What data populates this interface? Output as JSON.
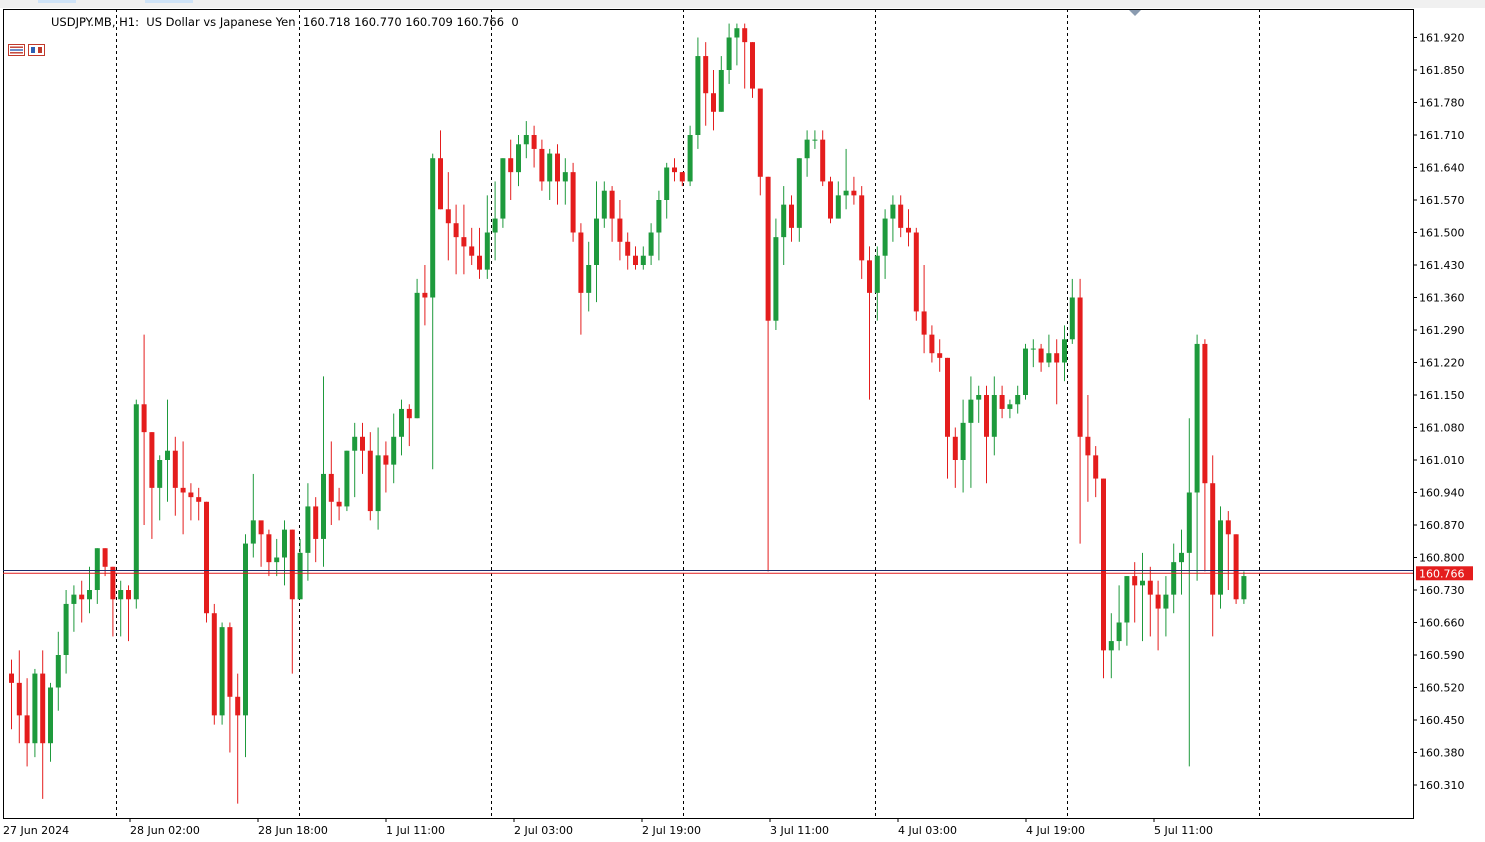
{
  "header": {
    "symbol": "USDJPY.MB",
    "timeframe": "H1:",
    "description": "US Dollar vs Japanese Yen",
    "ohlc": "160.718 160.770 160.709 160.766",
    "volume": "0"
  },
  "colors": {
    "bull": "#1e9a3c",
    "bear": "#e41d1d",
    "grid": "#000000",
    "bid_line": "#e41d1d",
    "ask_line": "#1c2b6b",
    "price_tag_bg": "#e41d1d"
  },
  "chart_data": {
    "type": "candlestick",
    "ylim": [
      160.25,
      161.98
    ],
    "y_ticks": [
      "161.920",
      "161.850",
      "161.780",
      "161.710",
      "161.640",
      "161.570",
      "161.500",
      "161.430",
      "161.360",
      "161.290",
      "161.220",
      "161.150",
      "161.080",
      "161.010",
      "160.940",
      "160.870",
      "160.800",
      "160.730",
      "160.660",
      "160.590",
      "160.520",
      "160.450",
      "160.380",
      "160.310"
    ],
    "x_labels": [
      "27 Jun 2024",
      "28 Jun 02:00",
      "28 Jun 18:00",
      "1 Jul 11:00",
      "2 Jul 03:00",
      "2 Jul 19:00",
      "3 Jul 11:00",
      "4 Jul 03:00",
      "4 Jul 19:00",
      "5 Jul 11:00"
    ],
    "current_price": "160.766",
    "ask_price": 160.772,
    "candles": [
      [
        160.55,
        160.53,
        160.58,
        160.43
      ],
      [
        160.53,
        160.46,
        160.6,
        160.4
      ],
      [
        160.46,
        160.4,
        160.54,
        160.35
      ],
      [
        160.4,
        160.55,
        160.56,
        160.37
      ],
      [
        160.55,
        160.4,
        160.6,
        160.28
      ],
      [
        160.4,
        160.52,
        160.53,
        160.36
      ],
      [
        160.52,
        160.59,
        160.64,
        160.47
      ],
      [
        160.59,
        160.7,
        160.73,
        160.55
      ],
      [
        160.7,
        160.72,
        160.74,
        160.64
      ],
      [
        160.72,
        160.71,
        160.75,
        160.66
      ],
      [
        160.71,
        160.73,
        160.78,
        160.68
      ],
      [
        160.73,
        160.82,
        160.82,
        160.7
      ],
      [
        160.82,
        160.78,
        160.82,
        160.76
      ],
      [
        160.78,
        160.71,
        160.78,
        160.63
      ],
      [
        160.71,
        160.73,
        160.75,
        160.63
      ],
      [
        160.73,
        160.71,
        160.74,
        160.62
      ],
      [
        160.71,
        161.13,
        161.14,
        160.69
      ],
      [
        161.13,
        161.07,
        161.28,
        160.87
      ],
      [
        161.07,
        160.95,
        161.07,
        160.84
      ],
      [
        160.95,
        161.01,
        161.02,
        160.88
      ],
      [
        161.01,
        161.03,
        161.14,
        160.92
      ],
      [
        161.03,
        160.95,
        161.06,
        160.89
      ],
      [
        160.95,
        160.94,
        161.05,
        160.85
      ],
      [
        160.94,
        160.93,
        160.96,
        160.88
      ],
      [
        160.93,
        160.92,
        160.95,
        160.88
      ],
      [
        160.92,
        160.68,
        160.92,
        160.66
      ],
      [
        160.68,
        160.46,
        160.7,
        160.44
      ],
      [
        160.46,
        160.65,
        160.66,
        160.44
      ],
      [
        160.65,
        160.5,
        160.66,
        160.38
      ],
      [
        160.5,
        160.46,
        160.55,
        160.27
      ],
      [
        160.46,
        160.83,
        160.85,
        160.37
      ],
      [
        160.83,
        160.88,
        160.98,
        160.8
      ],
      [
        160.88,
        160.85,
        160.87,
        160.78
      ],
      [
        160.85,
        160.79,
        160.86,
        160.76
      ],
      [
        160.79,
        160.8,
        160.84,
        160.76
      ],
      [
        160.8,
        160.86,
        160.88,
        160.74
      ],
      [
        160.86,
        160.71,
        160.86,
        160.55
      ],
      [
        160.71,
        160.81,
        160.84,
        160.73
      ],
      [
        160.81,
        160.91,
        160.96,
        160.75
      ],
      [
        160.91,
        160.84,
        160.93,
        160.79
      ],
      [
        160.84,
        160.98,
        161.19,
        160.78
      ],
      [
        160.98,
        160.92,
        161.05,
        160.87
      ],
      [
        160.92,
        160.91,
        160.95,
        160.88
      ],
      [
        160.91,
        161.03,
        161.03,
        160.9
      ],
      [
        161.03,
        161.06,
        161.09,
        160.93
      ],
      [
        161.06,
        161.03,
        161.09,
        160.98
      ],
      [
        161.03,
        160.9,
        161.07,
        160.88
      ],
      [
        160.9,
        161.02,
        161.08,
        160.86
      ],
      [
        161.02,
        161.0,
        161.05,
        160.94
      ],
      [
        161.0,
        161.06,
        161.11,
        160.96
      ],
      [
        161.06,
        161.12,
        161.14,
        161.02
      ],
      [
        161.12,
        161.1,
        161.13,
        161.04
      ],
      [
        161.1,
        161.37,
        161.4,
        161.1
      ],
      [
        161.37,
        161.36,
        161.43,
        161.3
      ],
      [
        161.36,
        161.66,
        161.67,
        160.99
      ],
      [
        161.66,
        161.55,
        161.72,
        161.55
      ],
      [
        161.55,
        161.52,
        161.63,
        161.44
      ],
      [
        161.52,
        161.49,
        161.56,
        161.41
      ],
      [
        161.49,
        161.47,
        161.56,
        161.41
      ],
      [
        161.47,
        161.45,
        161.51,
        161.43
      ],
      [
        161.45,
        161.42,
        161.51,
        161.4
      ],
      [
        161.42,
        161.5,
        161.58,
        161.4
      ],
      [
        161.5,
        161.53,
        161.61,
        161.44
      ],
      [
        161.53,
        161.66,
        161.66,
        161.51
      ],
      [
        161.66,
        161.63,
        161.7,
        161.57
      ],
      [
        161.63,
        161.69,
        161.71,
        161.6
      ],
      [
        161.69,
        161.71,
        161.74,
        161.66
      ],
      [
        161.71,
        161.68,
        161.73,
        161.64
      ],
      [
        161.68,
        161.61,
        161.7,
        161.59
      ],
      [
        161.61,
        161.67,
        161.68,
        161.57
      ],
      [
        161.67,
        161.61,
        161.69,
        161.56
      ],
      [
        161.61,
        161.63,
        161.66,
        161.56
      ],
      [
        161.63,
        161.5,
        161.65,
        161.48
      ],
      [
        161.5,
        161.37,
        161.52,
        161.28
      ],
      [
        161.37,
        161.43,
        161.48,
        161.33
      ],
      [
        161.43,
        161.53,
        161.61,
        161.35
      ],
      [
        161.53,
        161.59,
        161.61,
        161.51
      ],
      [
        161.59,
        161.53,
        161.6,
        161.48
      ],
      [
        161.53,
        161.48,
        161.57,
        161.44
      ],
      [
        161.48,
        161.45,
        161.5,
        161.42
      ],
      [
        161.45,
        161.43,
        161.47,
        161.42
      ],
      [
        161.43,
        161.45,
        161.47,
        161.42
      ],
      [
        161.45,
        161.5,
        161.52,
        161.43
      ],
      [
        161.5,
        161.57,
        161.59,
        161.44
      ],
      [
        161.57,
        161.64,
        161.65,
        161.53
      ],
      [
        161.64,
        161.63,
        161.66,
        161.61
      ],
      [
        161.63,
        161.61,
        161.63,
        161.6
      ],
      [
        161.61,
        161.71,
        161.73,
        161.6
      ],
      [
        161.71,
        161.88,
        161.92,
        161.68
      ],
      [
        161.88,
        161.8,
        161.91,
        161.73
      ],
      [
        161.8,
        161.76,
        161.85,
        161.72
      ],
      [
        161.76,
        161.85,
        161.88,
        161.76
      ],
      [
        161.85,
        161.92,
        161.95,
        161.82
      ],
      [
        161.92,
        161.94,
        161.95,
        161.86
      ],
      [
        161.94,
        161.91,
        161.95,
        161.81
      ],
      [
        161.91,
        161.81,
        161.91,
        161.79
      ],
      [
        161.81,
        161.62,
        161.81,
        161.58
      ],
      [
        161.62,
        161.31,
        161.62,
        160.77
      ],
      [
        161.31,
        161.49,
        161.53,
        161.29
      ],
      [
        161.49,
        161.56,
        161.6,
        161.43
      ],
      [
        161.56,
        161.51,
        161.58,
        161.48
      ],
      [
        161.51,
        161.66,
        161.66,
        161.48
      ],
      [
        161.66,
        161.7,
        161.72,
        161.62
      ],
      [
        161.7,
        161.7,
        161.72,
        161.68
      ],
      [
        161.7,
        161.61,
        161.72,
        161.6
      ],
      [
        161.61,
        161.53,
        161.62,
        161.52
      ],
      [
        161.53,
        161.58,
        161.61,
        161.53
      ],
      [
        161.58,
        161.59,
        161.68,
        161.55
      ],
      [
        161.59,
        161.58,
        161.62,
        161.56
      ],
      [
        161.58,
        161.44,
        161.6,
        161.4
      ],
      [
        161.44,
        161.37,
        161.47,
        161.14
      ],
      [
        161.37,
        161.45,
        161.47,
        161.31
      ],
      [
        161.45,
        161.53,
        161.55,
        161.4
      ],
      [
        161.53,
        161.56,
        161.58,
        161.48
      ],
      [
        161.56,
        161.51,
        161.58,
        161.49
      ],
      [
        161.51,
        161.5,
        161.55,
        161.47
      ],
      [
        161.5,
        161.33,
        161.51,
        161.31
      ],
      [
        161.33,
        161.28,
        161.43,
        161.24
      ],
      [
        161.28,
        161.24,
        161.3,
        161.22
      ],
      [
        161.24,
        161.23,
        161.27,
        161.2
      ],
      [
        161.23,
        161.06,
        161.23,
        160.97
      ],
      [
        161.06,
        161.01,
        161.08,
        160.95
      ],
      [
        161.01,
        161.09,
        161.14,
        160.94
      ],
      [
        161.09,
        161.14,
        161.19,
        160.95
      ],
      [
        161.14,
        161.15,
        161.17,
        161.09
      ],
      [
        161.15,
        161.06,
        161.17,
        160.96
      ],
      [
        161.06,
        161.15,
        161.19,
        161.02
      ],
      [
        161.15,
        161.12,
        161.17,
        161.1
      ],
      [
        161.12,
        161.13,
        161.14,
        161.1
      ],
      [
        161.13,
        161.15,
        161.17,
        161.11
      ],
      [
        161.15,
        161.25,
        161.26,
        161.14
      ],
      [
        161.25,
        161.25,
        161.27,
        161.21
      ],
      [
        161.25,
        161.22,
        161.26,
        161.2
      ],
      [
        161.22,
        161.24,
        161.28,
        161.21
      ],
      [
        161.24,
        161.22,
        161.27,
        161.13
      ],
      [
        161.22,
        161.27,
        161.3,
        161.18
      ],
      [
        161.27,
        161.36,
        161.4,
        161.26
      ],
      [
        161.36,
        161.06,
        161.4,
        160.83
      ],
      [
        161.06,
        161.02,
        161.15,
        160.92
      ],
      [
        161.02,
        160.97,
        161.04,
        160.93
      ],
      [
        160.97,
        160.6,
        160.97,
        160.54
      ],
      [
        160.6,
        160.62,
        160.68,
        160.54
      ],
      [
        160.62,
        160.66,
        160.74,
        160.6
      ],
      [
        160.66,
        160.76,
        160.76,
        160.61
      ],
      [
        160.76,
        160.74,
        160.79,
        160.66
      ],
      [
        160.74,
        160.75,
        160.81,
        160.62
      ],
      [
        160.75,
        160.72,
        160.78,
        160.63
      ],
      [
        160.72,
        160.69,
        160.75,
        160.6
      ],
      [
        160.69,
        160.72,
        160.76,
        160.63
      ],
      [
        160.72,
        160.79,
        160.83,
        160.68
      ],
      [
        160.79,
        160.81,
        160.86,
        160.72
      ],
      [
        160.81,
        160.94,
        161.1,
        160.35
      ],
      [
        160.94,
        161.26,
        161.28,
        160.75
      ],
      [
        161.26,
        160.96,
        161.27,
        160.77
      ],
      [
        160.96,
        160.72,
        161.02,
        160.63
      ],
      [
        160.72,
        160.88,
        160.91,
        160.69
      ],
      [
        160.88,
        160.85,
        160.9,
        160.73
      ],
      [
        160.85,
        160.71,
        160.85,
        160.7
      ],
      [
        160.71,
        160.76,
        160.77,
        160.7
      ]
    ]
  }
}
